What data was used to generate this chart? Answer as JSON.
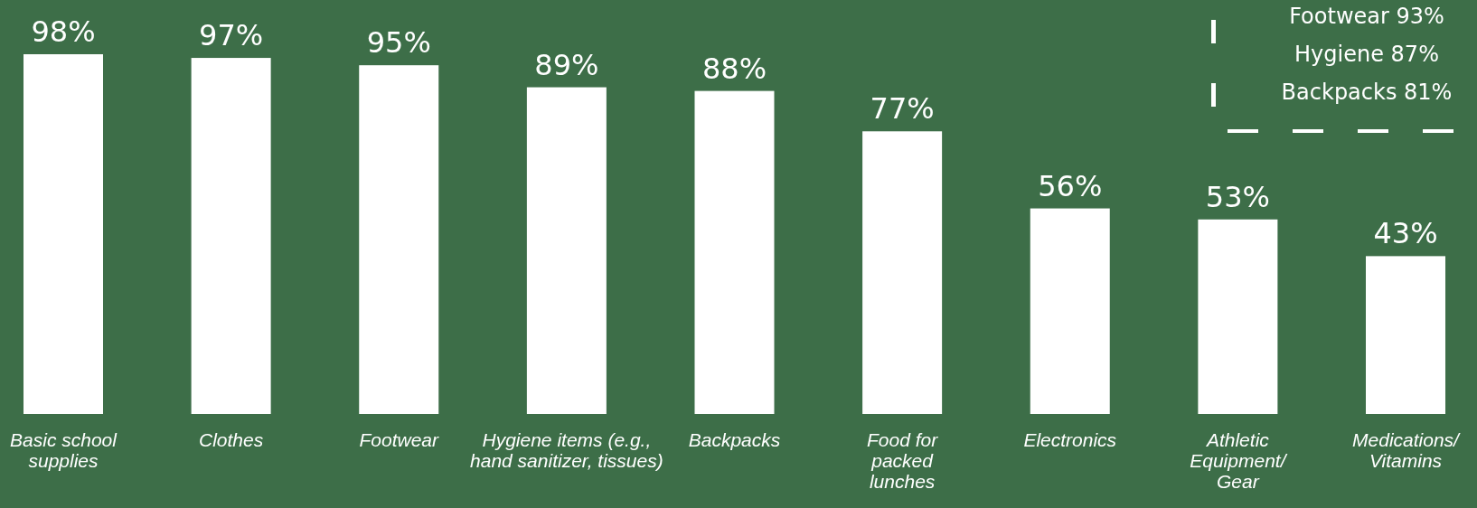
{
  "chart_data": {
    "type": "bar",
    "categories": [
      "Basic school supplies",
      "Clothes",
      "Footwear",
      "Hygiene items (e.g., hand sanitizer, tissues)",
      "Backpacks",
      "Food for packed lunches",
      "Electronics",
      "Athletic Equipment/ Gear",
      "Medications/ Vitamins"
    ],
    "values": [
      98,
      97,
      95,
      89,
      88,
      77,
      56,
      53,
      43
    ],
    "value_labels": [
      "98%",
      "97%",
      "95%",
      "89%",
      "88%",
      "77%",
      "56%",
      "53%",
      "43%"
    ],
    "color": "#ffffff",
    "annotations": [
      "Footwear 93%",
      "Hygiene 87%",
      "Backpacks 81%"
    ]
  }
}
